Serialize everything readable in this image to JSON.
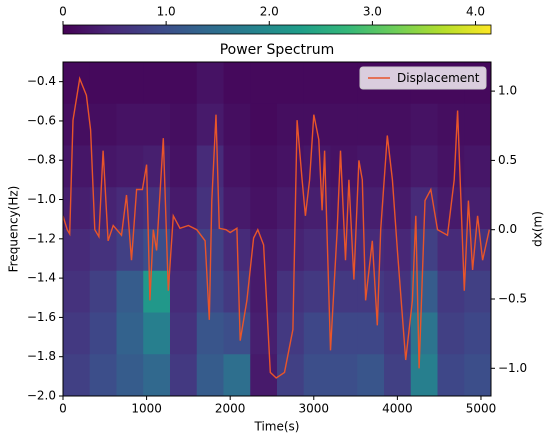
{
  "chart_data": {
    "type": "heatmap_line",
    "title": "Power Spectrum",
    "xlabel": "Time(s)",
    "ylabel": "Frequency(Hz)",
    "y2label": "dx(m)",
    "xlim": [
      0,
      5120
    ],
    "xticks": [
      0,
      1000,
      2000,
      3000,
      4000,
      5000
    ],
    "ylim": [
      -2.0,
      -0.3
    ],
    "yticks": [
      {
        "value": -2.0,
        "label": "−2.0"
      },
      {
        "value": -1.8,
        "label": "−1.8"
      },
      {
        "value": -1.6,
        "label": "−1.6"
      },
      {
        "value": -1.4,
        "label": "−1.4"
      },
      {
        "value": -1.2,
        "label": "−1.2"
      },
      {
        "value": -1.0,
        "label": "−1.0"
      },
      {
        "value": -0.8,
        "label": "−0.8"
      },
      {
        "value": -0.6,
        "label": "−0.6"
      },
      {
        "value": -0.4,
        "label": "−0.4"
      }
    ],
    "y2lim": [
      -1.2,
      1.21
    ],
    "y2ticks": [
      {
        "value": -1.0,
        "label": "−1.0"
      },
      {
        "value": -0.5,
        "label": "−0.5"
      },
      {
        "value": 0,
        "label": "0.0"
      },
      {
        "value": 0.5,
        "label": "0.5"
      },
      {
        "value": 1.0,
        "label": "1.0"
      }
    ],
    "colormap": "viridis",
    "clim": [
      0,
      4.15
    ],
    "cticks": [
      0,
      {
        "value": 1.0,
        "label": "1.0"
      },
      {
        "value": 2.0,
        "label": "2.0"
      },
      {
        "value": 3.0,
        "label": "3.0"
      },
      {
        "value": 4.0,
        "label": "4.0"
      }
    ],
    "z": [
      [
        0.1,
        0.1,
        0.1,
        0.1,
        0.1,
        0.2,
        0.1,
        0.1,
        0.1,
        0.1,
        0.1,
        0.1,
        0.1,
        0.1,
        0.1,
        0.1
      ],
      [
        0.15,
        0.15,
        0.2,
        0.2,
        0.15,
        0.3,
        0.15,
        0.1,
        0.15,
        0.15,
        0.15,
        0.15,
        0.15,
        0.2,
        0.15,
        0.15
      ],
      [
        0.25,
        0.25,
        0.3,
        0.35,
        0.2,
        0.5,
        0.2,
        0.15,
        0.2,
        0.25,
        0.2,
        0.25,
        0.2,
        0.3,
        0.2,
        0.25
      ],
      [
        0.35,
        0.4,
        0.5,
        0.6,
        0.3,
        0.6,
        0.3,
        0.2,
        0.3,
        0.35,
        0.3,
        0.35,
        0.3,
        0.5,
        0.3,
        0.35
      ],
      [
        0.5,
        0.6,
        0.8,
        1.0,
        0.4,
        0.8,
        0.5,
        0.3,
        0.4,
        0.5,
        0.5,
        0.5,
        0.45,
        0.8,
        0.5,
        0.6
      ],
      [
        0.6,
        0.8,
        1.2,
        2.2,
        0.5,
        0.9,
        0.7,
        0.3,
        0.6,
        0.7,
        0.7,
        0.7,
        0.6,
        1.2,
        0.7,
        0.8
      ],
      [
        0.7,
        0.9,
        1.3,
        1.8,
        0.6,
        1.1,
        1.0,
        0.35,
        0.7,
        0.9,
        0.9,
        0.9,
        0.7,
        1.6,
        0.8,
        0.9
      ],
      [
        0.8,
        1.0,
        1.2,
        1.4,
        0.7,
        1.2,
        1.5,
        0.3,
        0.8,
        1.0,
        1.0,
        1.1,
        0.8,
        1.8,
        0.9,
        1.0
      ]
    ],
    "series": [
      {
        "name": "Displacement",
        "color": "#e8552a",
        "axis": "y2",
        "x": [
          0,
          50,
          80,
          120,
          200,
          280,
          330,
          380,
          430,
          480,
          540,
          600,
          700,
          760,
          820,
          880,
          950,
          1000,
          1040,
          1080,
          1120,
          1200,
          1260,
          1320,
          1400,
          1500,
          1600,
          1700,
          1750,
          1780,
          1830,
          1870,
          1950,
          2000,
          2080,
          2120,
          2200,
          2280,
          2330,
          2400,
          2480,
          2550,
          2650,
          2750,
          2800,
          2860,
          2900,
          2950,
          3000,
          3060,
          3100,
          3130,
          3200,
          3280,
          3320,
          3380,
          3420,
          3480,
          3540,
          3580,
          3620,
          3700,
          3760,
          3800,
          3880,
          3940,
          4000,
          4100,
          4180,
          4220,
          4260,
          4330,
          4400,
          4480,
          4600,
          4680,
          4720,
          4800,
          4850,
          4900,
          4960,
          5020,
          5100
        ],
        "values": [
          0.1,
          0,
          -0.03,
          0.79,
          1.09,
          0.97,
          0.72,
          0,
          -0.05,
          0.57,
          -0.08,
          0.03,
          -0.04,
          0.25,
          -0.22,
          0.29,
          0.29,
          0.47,
          -0.51,
          0,
          -0.15,
          0.66,
          -0.44,
          0.1,
          0.01,
          0.03,
          0,
          -0.08,
          -0.65,
          0.21,
          0.83,
          0.01,
          0,
          -0.02,
          0.01,
          -0.8,
          -0.51,
          -0.06,
          0,
          -0.11,
          -1.03,
          -1.07,
          -1.03,
          -0.72,
          0.79,
          0.36,
          0.1,
          0.36,
          0.83,
          0.65,
          0.14,
          0.57,
          -0.87,
          0,
          0.57,
          -0.22,
          0.36,
          -0.36,
          0.5,
          0.36,
          -0.51,
          -0.08,
          -0.69,
          0,
          0.68,
          0.36,
          -0.15,
          -0.94,
          -0.51,
          0.1,
          -1.0,
          0.21,
          0.29,
          0,
          -0.04,
          0.36,
          0.86,
          -0.44,
          0.21,
          -0.29,
          0.1,
          -0.22,
          0
        ]
      }
    ],
    "legend": "upper right"
  }
}
